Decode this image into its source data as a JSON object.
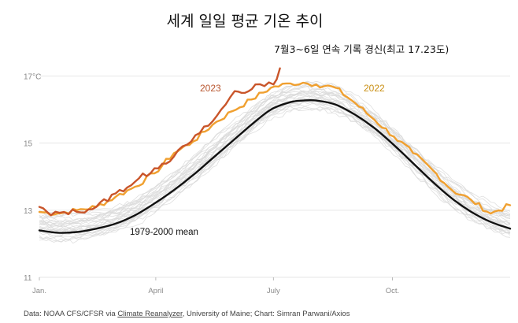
{
  "chart_data": {
    "type": "line",
    "title": "세계 일일 평균 기온 추이",
    "annotation": "7월3~6일 연속 기록 경신(최고 17.23도)",
    "ylabel": "",
    "xlabel": "",
    "ylim": [
      11,
      17.2
    ],
    "yticks": [
      {
        "value": 17,
        "label": "17°C"
      },
      {
        "value": 15,
        "label": "15"
      },
      {
        "value": 13,
        "label": "13"
      },
      {
        "value": 11,
        "label": "11"
      }
    ],
    "xlim": [
      1,
      365
    ],
    "xticks": [
      {
        "day": 1,
        "label": "Jan."
      },
      {
        "day": 91,
        "label": "April"
      },
      {
        "day": 182,
        "label": "July"
      },
      {
        "day": 274,
        "label": "Oct."
      }
    ],
    "grid": true,
    "series": [
      {
        "name": "1979-2000 mean",
        "label": "1979-2000 mean",
        "color": "#111111",
        "x": [
          1,
          15,
          30,
          45,
          60,
          75,
          90,
          105,
          120,
          135,
          150,
          165,
          180,
          195,
          205,
          215,
          230,
          245,
          260,
          275,
          290,
          305,
          320,
          335,
          350,
          365
        ],
        "y": [
          12.4,
          12.33,
          12.35,
          12.45,
          12.6,
          12.85,
          13.2,
          13.6,
          14.05,
          14.55,
          15.05,
          15.55,
          16.0,
          16.22,
          16.27,
          16.27,
          16.15,
          15.85,
          15.45,
          14.95,
          14.4,
          13.85,
          13.35,
          12.95,
          12.65,
          12.45
        ]
      },
      {
        "name": "2022",
        "label": "2022",
        "color": "#f0a030",
        "x": [
          1,
          15,
          30,
          45,
          60,
          75,
          90,
          105,
          120,
          135,
          150,
          165,
          180,
          195,
          205,
          215,
          230,
          245,
          260,
          275,
          290,
          305,
          320,
          335,
          350,
          365
        ],
        "y": [
          12.95,
          12.9,
          13.0,
          13.1,
          13.4,
          13.7,
          14.1,
          14.7,
          15.05,
          15.55,
          15.95,
          16.3,
          16.65,
          16.78,
          16.8,
          16.75,
          16.65,
          16.2,
          15.7,
          15.2,
          14.7,
          14.2,
          13.6,
          13.3,
          12.9,
          13.15
        ]
      },
      {
        "name": "2023",
        "label": "2023",
        "color": "#c9552a",
        "x": [
          1,
          10,
          20,
          30,
          45,
          60,
          75,
          90,
          105,
          115,
          125,
          135,
          145,
          152,
          160,
          168,
          175,
          182,
          187
        ],
        "y": [
          13.1,
          12.85,
          12.95,
          12.95,
          13.1,
          13.5,
          13.85,
          14.25,
          14.6,
          14.95,
          15.3,
          15.65,
          16.15,
          16.55,
          16.5,
          16.75,
          16.7,
          16.75,
          17.23
        ]
      }
    ],
    "source_note": {
      "prefix": "Data: NOAA CFS/CFSR via ",
      "link": "Climate Reanalyzer",
      "suffix": ", University of Maine; Chart: Simran Parwani/Axios"
    }
  }
}
